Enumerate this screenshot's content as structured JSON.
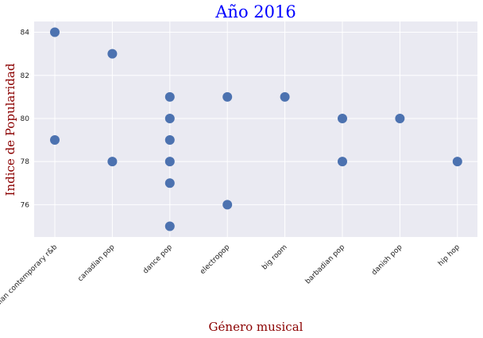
{
  "chart_data": {
    "type": "scatter",
    "title": "Año 2016",
    "xlabel": "Género musical",
    "ylabel": "Indice de Popularidad",
    "categories": [
      "canadian contemporary r&b",
      "canadian pop",
      "dance pop",
      "electropop",
      "big room",
      "barbadian pop",
      "danish pop",
      "hip hop"
    ],
    "ylim": [
      74.5,
      84.5
    ],
    "yticks": [
      76,
      78,
      80,
      82,
      84
    ],
    "grid": true,
    "points": [
      {
        "x": "canadian contemporary r&b",
        "y": 84
      },
      {
        "x": "canadian contemporary r&b",
        "y": 79
      },
      {
        "x": "canadian pop",
        "y": 83
      },
      {
        "x": "canadian pop",
        "y": 78
      },
      {
        "x": "dance pop",
        "y": 81
      },
      {
        "x": "dance pop",
        "y": 80
      },
      {
        "x": "dance pop",
        "y": 79
      },
      {
        "x": "dance pop",
        "y": 78
      },
      {
        "x": "dance pop",
        "y": 77
      },
      {
        "x": "dance pop",
        "y": 75
      },
      {
        "x": "electropop",
        "y": 81
      },
      {
        "x": "electropop",
        "y": 76
      },
      {
        "x": "big room",
        "y": 81
      },
      {
        "x": "barbadian pop",
        "y": 80
      },
      {
        "x": "barbadian pop",
        "y": 78
      },
      {
        "x": "danish pop",
        "y": 80
      },
      {
        "x": "hip hop",
        "y": 78
      }
    ],
    "colors": {
      "marker": "#4c72b0",
      "plot_background": "#eaeaf2",
      "grid": "#ffffff",
      "title": "#0000ff",
      "axis_label": "#8b0000"
    }
  }
}
